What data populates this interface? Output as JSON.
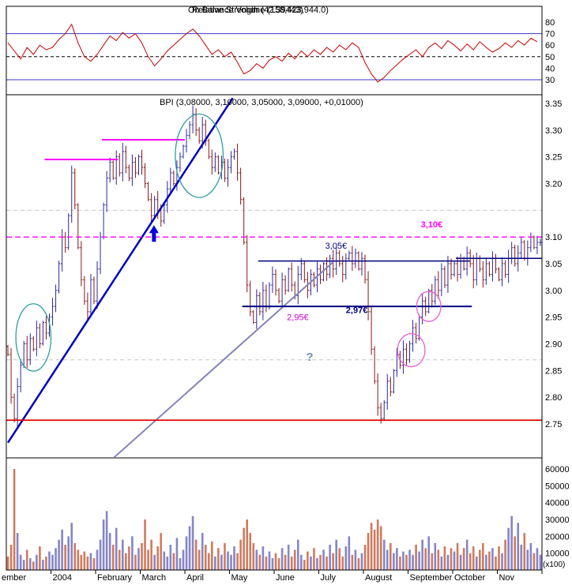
{
  "titles": {
    "indicator_a": "On Balance Volume (158,423,944.0)",
    "indicator_b": "Relative Strength (42.39443)",
    "price": "BPI (3,08000, 3,10000, 3,05000, 3,09000, +0,01000)"
  },
  "x_axis": {
    "months": [
      "ember",
      "2004",
      "February",
      "March",
      "April",
      "May",
      "June",
      "July",
      "August",
      "September",
      "October",
      "Nov"
    ],
    "bars_per_month": 14
  },
  "chart_data": [
    {
      "type": "line",
      "name": "relative-strength-indicator",
      "color": "#cc0000",
      "ylim": [
        25,
        85
      ],
      "yticks": [
        80,
        70,
        60,
        50,
        40,
        30
      ],
      "ref_lines": {
        "solid": [
          70,
          30
        ],
        "dashed": [
          50
        ]
      },
      "sample_every_bars": 2,
      "values": [
        62,
        55,
        48,
        58,
        52,
        60,
        56,
        58,
        65,
        70,
        78,
        62,
        50,
        46,
        52,
        60,
        68,
        64,
        71,
        66,
        70,
        62,
        50,
        42,
        48,
        55,
        60,
        65,
        70,
        74,
        68,
        60,
        52,
        56,
        50,
        54,
        45,
        35,
        38,
        44,
        40,
        47,
        50,
        46,
        53,
        48,
        55,
        50,
        56,
        52,
        58,
        54,
        60,
        56,
        62,
        58,
        45,
        35,
        28,
        32,
        38,
        43,
        48,
        52,
        56,
        50,
        58,
        62,
        57,
        64,
        60,
        55,
        61,
        56,
        63,
        58,
        54,
        57,
        62,
        58,
        64,
        60,
        66,
        63
      ]
    },
    {
      "type": "candlestick",
      "name": "bpi-daily-ohlc",
      "ylim": [
        2.72,
        3.37
      ],
      "yticks": [
        3.35,
        3.3,
        3.25,
        3.2,
        3.1,
        3.05,
        3.0,
        2.95,
        2.9,
        2.85,
        2.8,
        2.75
      ],
      "up_color": "#2a2aa0",
      "down_color": "#8a1616",
      "closes": [
        2.88,
        2.8,
        2.76,
        2.82,
        2.86,
        2.9,
        2.87,
        2.91,
        2.89,
        2.93,
        2.9,
        2.94,
        2.92,
        2.95,
        2.97,
        3.0,
        3.05,
        3.1,
        3.08,
        3.14,
        3.22,
        3.16,
        3.08,
        3.02,
        2.98,
        2.96,
        3.02,
        2.98,
        3.04,
        3.1,
        3.16,
        3.21,
        3.24,
        3.21,
        3.25,
        3.22,
        3.26,
        3.23,
        3.21,
        3.24,
        3.22,
        3.25,
        3.23,
        3.2,
        3.17,
        3.14,
        3.17,
        3.15,
        3.13,
        3.16,
        3.19,
        3.22,
        3.2,
        3.23,
        3.25,
        3.27,
        3.29,
        3.31,
        3.33,
        3.3,
        3.28,
        3.31,
        3.28,
        3.25,
        3.23,
        3.25,
        3.22,
        3.24,
        3.21,
        3.23,
        3.25,
        3.26,
        3.22,
        3.17,
        3.09,
        3.01,
        2.96,
        2.94,
        2.99,
        2.96,
        3.0,
        2.97,
        3.01,
        3.03,
        3.0,
        2.98,
        3.02,
        3.0,
        3.04,
        3.01,
        2.99,
        3.03,
        3.05,
        3.02,
        3.0,
        3.03,
        3.01,
        3.04,
        3.02,
        3.05,
        3.03,
        3.06,
        3.04,
        3.07,
        3.05,
        3.03,
        3.06,
        3.07,
        3.05,
        3.07,
        3.04,
        3.06,
        3.02,
        2.96,
        2.89,
        2.83,
        2.78,
        2.76,
        2.79,
        2.83,
        2.81,
        2.85,
        2.88,
        2.86,
        2.89,
        2.87,
        2.9,
        2.93,
        2.91,
        2.95,
        2.98,
        2.96,
        3.0,
        2.98,
        3.02,
        3.0,
        3.04,
        3.01,
        3.05,
        3.03,
        3.05,
        3.03,
        3.06,
        3.04,
        3.07,
        3.05,
        3.02,
        3.06,
        3.04,
        3.02,
        3.05,
        3.03,
        3.06,
        3.04,
        3.02,
        3.05,
        3.03,
        3.06,
        3.08,
        3.05,
        3.07,
        3.09,
        3.06,
        3.08,
        3.1,
        3.08,
        3.09,
        3.09
      ],
      "annotations": {
        "hlines": [
          {
            "price": 3.1,
            "color": "#ff00ff",
            "style": "dashed",
            "w": 1.3
          },
          {
            "price": 2.757,
            "color": "#e00000",
            "style": "solid",
            "w": 1.8
          }
        ],
        "gridlines_dashed": [
          3.15,
          2.87
        ],
        "segments": [
          {
            "b1": 12,
            "p1": 3.245,
            "b2": 35,
            "p2": 3.245,
            "color": "#ff00ff",
            "w": 2
          },
          {
            "b1": 30,
            "p1": 3.282,
            "b2": 56,
            "p2": 3.282,
            "color": "#ff00ff",
            "w": 2
          },
          {
            "b1": 0.5,
            "p1": 2.715,
            "b2": 71,
            "p2": 3.36,
            "color": "#0000bb",
            "w": 2.5
          },
          {
            "b1": 33,
            "p1": 2.683,
            "b2": 102.5,
            "p2": 3.053,
            "color": "#8585bb",
            "w": 2
          },
          {
            "b1": 79,
            "p1": 3.055,
            "b2": 145.5,
            "p2": 3.055,
            "color": "#000080",
            "w": 1.5
          },
          {
            "b1": 141,
            "p1": 3.06,
            "b2": 168,
            "p2": 3.06,
            "color": "#000080",
            "w": 1.5
          },
          {
            "b1": 74,
            "p1": 2.97,
            "b2": 146,
            "p2": 2.97,
            "color": "#000080",
            "w": 2
          }
        ],
        "ellipses": [
          {
            "bar": 8.5,
            "price": 2.912,
            "rxb": 5.5,
            "ryp": 0.063,
            "color": "#2f9e9e"
          },
          {
            "bar": 60.5,
            "price": 3.252,
            "rxb": 7.5,
            "ryp": 0.078,
            "color": "#2f9e9e"
          },
          {
            "bar": 127,
            "price": 2.888,
            "rxb": 4.3,
            "ryp": 0.031,
            "color": "#e860d0"
          },
          {
            "bar": 132.5,
            "price": 2.97,
            "rxb": 3.8,
            "ryp": 0.028,
            "color": "#e860d0"
          }
        ],
        "labels": [
          {
            "bar": 130,
            "price": 3.118,
            "text": "3,10€",
            "color": "#ff00ff",
            "bold": true
          },
          {
            "bar": 100,
            "price": 3.078,
            "text": "3,05€",
            "color": "#000080",
            "bold": false
          },
          {
            "bar": 106.5,
            "price": 2.958,
            "text": "2,97€",
            "color": "#000080",
            "bold": true
          },
          {
            "bar": 88,
            "price": 2.944,
            "text": "2,95€",
            "color": "#cc00cc",
            "bold": false
          },
          {
            "bar": 94,
            "price": 2.868,
            "text": "?",
            "color": "#7788bb",
            "bold": true,
            "size": 15
          }
        ],
        "arrow": {
          "bar": 46.3,
          "price": 3.122,
          "color": "#0000dd"
        }
      }
    },
    {
      "type": "bar",
      "name": "volume",
      "unit": "(x100)",
      "ylim": [
        0,
        60000
      ],
      "yticks": [
        60000,
        50000,
        40000,
        30000,
        20000,
        10000
      ],
      "up_color": "#8585c7",
      "down_color": "#cf7a5e",
      "values": [
        8000,
        15000,
        60000,
        22000,
        9000,
        6000,
        12000,
        7000,
        5000,
        9000,
        14000,
        6000,
        8000,
        11000,
        9000,
        13000,
        18000,
        24000,
        15000,
        20000,
        28000,
        16000,
        12000,
        9000,
        11000,
        8000,
        10000,
        7000,
        12000,
        18000,
        30000,
        35000,
        22000,
        15000,
        25000,
        12000,
        18000,
        10000,
        14000,
        20000,
        9000,
        13000,
        16000,
        30000,
        12000,
        18000,
        9000,
        14000,
        22000,
        11000,
        8000,
        15000,
        10000,
        19000,
        7000,
        12000,
        20000,
        26000,
        32000,
        18000,
        12000,
        22000,
        15000,
        10000,
        17000,
        8000,
        13000,
        9000,
        16000,
        11000,
        9000,
        14000,
        10000,
        18000,
        25000,
        30000,
        22000,
        16000,
        12000,
        9000,
        14000,
        8000,
        11000,
        7000,
        10000,
        7000,
        13000,
        9000,
        15000,
        8000,
        12000,
        18000,
        9000,
        6000,
        11000,
        8000,
        13000,
        7000,
        9000,
        12000,
        8000,
        15000,
        10000,
        18000,
        13000,
        8000,
        14000,
        20000,
        9000,
        12000,
        7000,
        10000,
        15000,
        22000,
        28000,
        24000,
        30000,
        26000,
        18000,
        12000,
        16000,
        10000,
        13000,
        8000,
        11000,
        9000,
        12000,
        9000,
        15000,
        11000,
        18000,
        13000,
        20000,
        10000,
        16000,
        12000,
        8000,
        14000,
        9000,
        13000,
        11000,
        16000,
        9000,
        13000,
        18000,
        10000,
        14000,
        8000,
        12000,
        16000,
        9000,
        11000,
        13000,
        8000,
        14000,
        10000,
        18000,
        25000,
        32000,
        20000,
        28000,
        15000,
        22000,
        12000,
        16000,
        10000,
        13000,
        9000
      ]
    }
  ]
}
